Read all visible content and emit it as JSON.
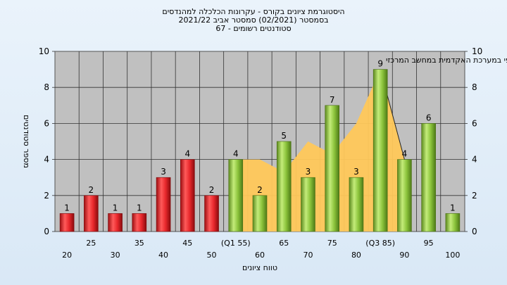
{
  "chart_data": {
    "type": "bar",
    "title_lines": [
      "היסטוגרמת ציונים בקורס - עקרונות הכלכלה למהנדסים",
      "בסמסטר  (02/2021)  סמסטר אביב 2021/22",
      "סטודנטים רשומים - 67"
    ],
    "annotation": "במשימה : ציון סופי במערכת האקדמית במחשב המרכזי",
    "xlabel": "טווח ציונים",
    "ylabel": "מספר סטודנטים",
    "ylim": [
      0,
      10
    ],
    "yticks": [
      0,
      2,
      4,
      6,
      8,
      10
    ],
    "grid": true,
    "x_labels": [
      "20",
      "25",
      "30",
      "35",
      "40",
      "45",
      "50",
      "(Q1 55)",
      "60",
      "65",
      "70",
      "75",
      "80",
      "(Q3 85)",
      "90",
      "95",
      "100"
    ],
    "values": [
      1,
      2,
      1,
      1,
      3,
      4,
      2,
      4,
      2,
      5,
      3,
      7,
      3,
      9,
      4,
      6,
      1
    ],
    "bar_colors": [
      "red",
      "red",
      "red",
      "red",
      "red",
      "red",
      "red",
      "green",
      "green",
      "green",
      "green",
      "green",
      "green",
      "green",
      "green",
      "green",
      "green"
    ],
    "area": {
      "color": "#ffc85a",
      "points": [
        [
          7,
          4
        ],
        [
          8,
          4
        ],
        [
          9,
          3.3
        ],
        [
          10,
          5
        ],
        [
          11,
          4.3
        ],
        [
          12,
          6
        ],
        [
          13,
          9
        ],
        [
          14,
          4
        ]
      ]
    }
  },
  "colors": {
    "plot_bg": "#c0c0c0",
    "red_bar": "#e8282c",
    "green_bar": "#8cc43c"
  }
}
